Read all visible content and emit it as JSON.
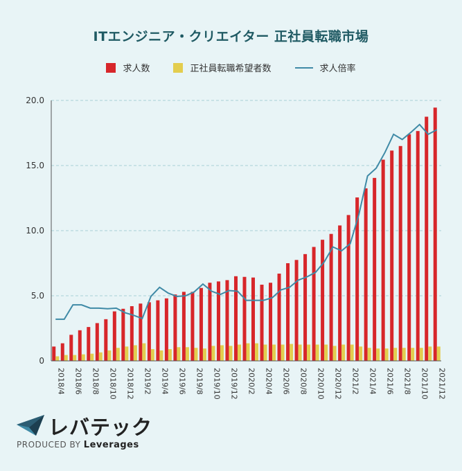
{
  "colors": {
    "job_openings": "#d7262a",
    "applicants": "#e3cd4e",
    "ratio": "#3f8aa6"
  },
  "chart_data": {
    "type": "bar",
    "title": "ITエンジニア・クリエイター 正社員転職市場",
    "legend": [
      "求人数",
      "正社員転職希望者数",
      "求人倍率"
    ],
    "ylim": [
      0,
      20
    ],
    "yticks": [
      "20.0",
      "15.0",
      "10.0",
      "5.0",
      "0"
    ],
    "categories": [
      "2018/4",
      "2018/5",
      "2018/6",
      "2018/7",
      "2018/8",
      "2018/9",
      "2018/10",
      "2018/11",
      "2018/12",
      "2019/1",
      "2019/2",
      "2019/3",
      "2019/4",
      "2019/5",
      "2019/6",
      "2019/7",
      "2019/8",
      "2019/9",
      "2019/10",
      "2019/11",
      "2019/12",
      "2020/1",
      "2020/2",
      "2020/3",
      "2020/4",
      "2020/5",
      "2020/6",
      "2020/7",
      "2020/8",
      "2020/9",
      "2020/10",
      "2020/11",
      "2020/12",
      "2021/1",
      "2021/2",
      "2021/3",
      "2021/4",
      "2021/5",
      "2021/6",
      "2021/7",
      "2021/8",
      "2021/9",
      "2021/10",
      "2021/11",
      "2021/12"
    ],
    "xtick_labels": [
      "2018/4",
      "2018/6",
      "2018/8",
      "2018/10",
      "2018/12",
      "2019/2",
      "2019/4",
      "2019/6",
      "2019/8",
      "2019/10",
      "2019/12",
      "2020/2",
      "2020/4",
      "2020/6",
      "2020/8",
      "2020/10",
      "2020/12",
      "2021/2",
      "2021/4",
      "2021/6",
      "2021/8",
      "2021/10",
      "2021/12"
    ],
    "series": [
      {
        "name": "求人数",
        "type": "bar",
        "values": [
          1.1,
          1.35,
          2.0,
          2.35,
          2.6,
          2.9,
          3.2,
          3.8,
          4.0,
          4.2,
          4.4,
          4.5,
          4.65,
          4.8,
          5.1,
          5.3,
          5.3,
          5.6,
          6.0,
          6.1,
          6.2,
          6.5,
          6.45,
          6.4,
          5.85,
          6.0,
          6.7,
          7.5,
          7.75,
          8.2,
          8.75,
          9.3,
          9.75,
          10.4,
          11.2,
          12.55,
          13.25,
          14.05,
          15.45,
          16.15,
          16.5,
          17.4,
          17.65,
          18.75,
          19.45
        ]
      },
      {
        "name": "正社員転職希望者数",
        "type": "bar",
        "values": [
          0.35,
          0.45,
          0.45,
          0.5,
          0.55,
          0.65,
          0.8,
          1.0,
          1.1,
          1.2,
          1.35,
          0.9,
          0.8,
          0.9,
          1.05,
          1.05,
          1.0,
          0.95,
          1.15,
          1.2,
          1.15,
          1.25,
          1.35,
          1.35,
          1.25,
          1.25,
          1.25,
          1.3,
          1.25,
          1.25,
          1.25,
          1.25,
          1.15,
          1.25,
          1.25,
          1.1,
          1.0,
          0.95,
          0.95,
          1.0,
          1.0,
          1.0,
          1.0,
          1.1,
          1.1
        ]
      },
      {
        "name": "求人倍率",
        "type": "line",
        "values": [
          3.2,
          3.2,
          4.3,
          4.3,
          4.05,
          4.05,
          4.0,
          4.05,
          3.7,
          3.5,
          3.25,
          4.95,
          5.65,
          5.2,
          4.95,
          5.0,
          5.3,
          5.9,
          5.35,
          5.1,
          5.4,
          5.35,
          4.65,
          4.65,
          4.65,
          4.85,
          5.45,
          5.65,
          6.2,
          6.45,
          6.8,
          7.6,
          8.75,
          8.45,
          9.0,
          11.25,
          14.2,
          14.8,
          16.0,
          17.4,
          17.0,
          17.55,
          18.15,
          17.4,
          17.75
        ]
      }
    ]
  },
  "logo": {
    "brand": "レバテック",
    "produced_by": "PRODUCED BY",
    "company": "Leverages"
  }
}
